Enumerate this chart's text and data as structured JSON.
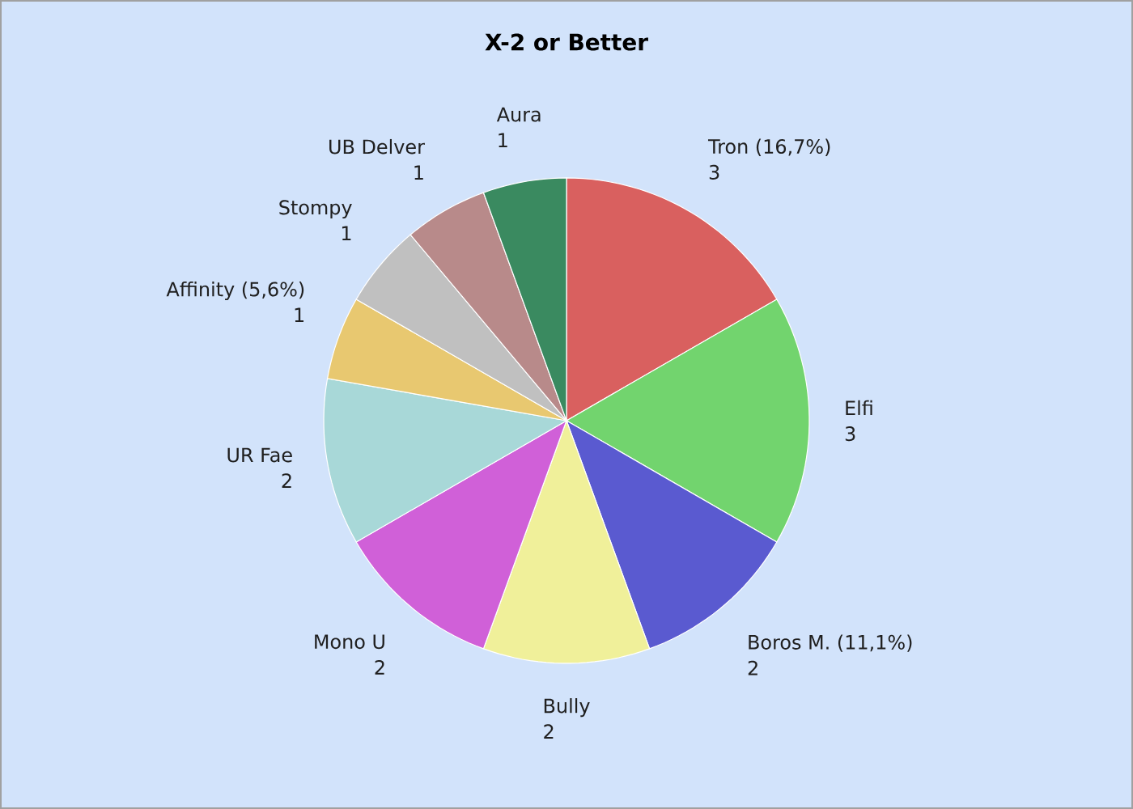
{
  "chart_data": {
    "type": "pie",
    "title": "X-2 or Better",
    "categories": [
      "Tron (16,7%)",
      "Elfi",
      "Boros M. (11,1%)",
      "Bully",
      "Mono U",
      "UR Fae",
      "Affinity (5,6%)",
      "Stompy",
      "UB Delver",
      "Aura"
    ],
    "values": [
      3,
      3,
      2,
      2,
      2,
      2,
      1,
      1,
      1,
      1
    ],
    "colors": [
      "#d9605f",
      "#72d46e",
      "#5a5ad0",
      "#f0f09a",
      "#d060d8",
      "#a8d8d8",
      "#e8c870",
      "#c0c0c0",
      "#b88a8a",
      "#3a8a60"
    ],
    "data_labels": true
  }
}
